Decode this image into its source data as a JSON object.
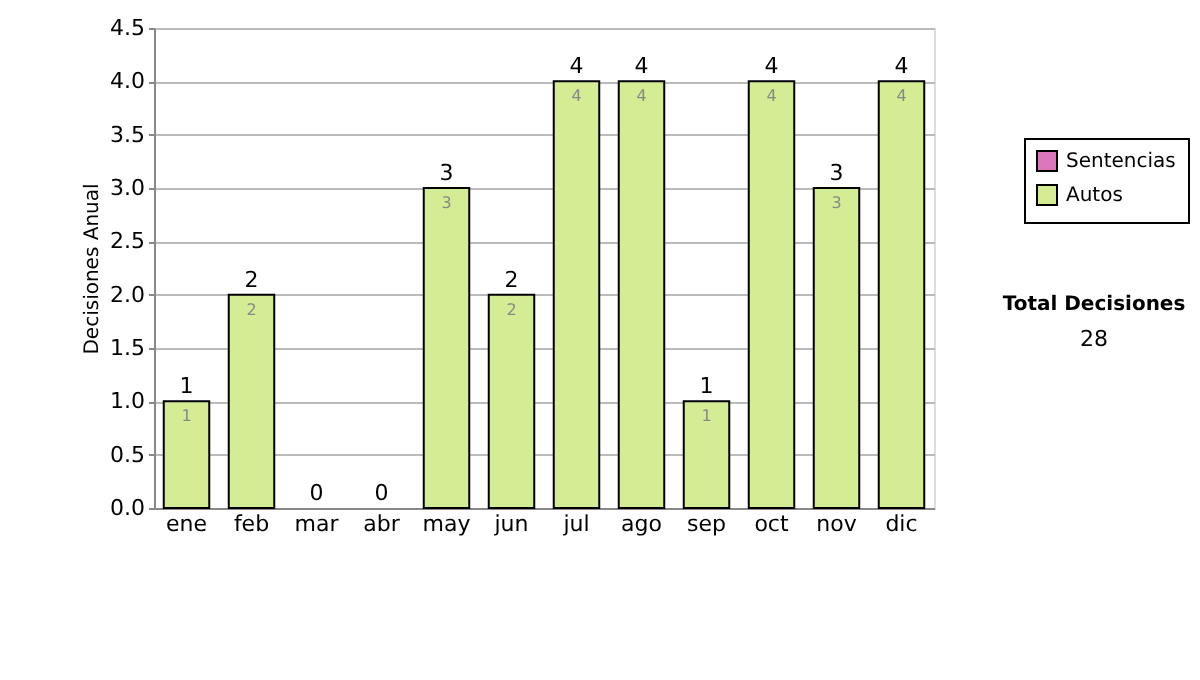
{
  "chart_data": {
    "type": "bar",
    "stacked": true,
    "ylabel": "Decisiones Anual",
    "categories": [
      "ene",
      "feb",
      "mar",
      "abr",
      "may",
      "jun",
      "jul",
      "ago",
      "sep",
      "oct",
      "nov",
      "dic"
    ],
    "series": [
      {
        "name": "Sentencias",
        "color": "#dd77bb",
        "values": [
          0,
          0,
          0,
          0,
          0,
          0,
          0,
          0,
          0,
          0,
          0,
          0
        ]
      },
      {
        "name": "Autos",
        "color": "#d4ec94",
        "values": [
          1,
          2,
          0,
          0,
          3,
          2,
          4,
          4,
          1,
          4,
          3,
          4
        ],
        "value_labels": [
          "1",
          "2",
          null,
          null,
          "3",
          "2",
          "4",
          "4",
          "1",
          "4",
          "3",
          "4"
        ]
      }
    ],
    "totals": [
      "1",
      "2",
      "0",
      "0",
      "3",
      "2",
      "4",
      "4",
      "1",
      "4",
      "3",
      "4"
    ],
    "ylim": [
      0,
      4.5
    ],
    "yticks": [
      {
        "value": 0,
        "label": "0.0"
      },
      0.5,
      {
        "value": 1,
        "label": "1.0"
      },
      1.5,
      {
        "value": 2,
        "label": "2.0"
      },
      2.5,
      {
        "value": 3,
        "label": "3.0"
      },
      3.5,
      {
        "value": 4,
        "label": "4.0"
      },
      4.5
    ],
    "grid": "y",
    "legend": "right",
    "annotations": [
      "Total Decisiones",
      "28"
    ]
  }
}
